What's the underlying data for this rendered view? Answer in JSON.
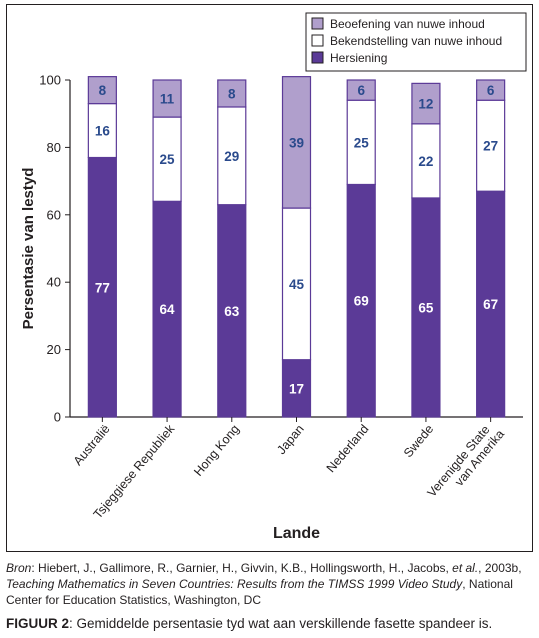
{
  "chart_data": {
    "type": "bar",
    "stacked": true,
    "categories": [
      "Australië",
      "Tsjeggiese Republiek",
      "Hong Kong",
      "Japan",
      "Nederland",
      "Swede",
      "Verenigde State van Amerika"
    ],
    "series": [
      {
        "name": "Hersiening",
        "values": [
          77,
          64,
          63,
          17,
          69,
          65,
          67
        ],
        "color": "#5b3a97"
      },
      {
        "name": "Bekendstelling van nuwe inhoud",
        "values": [
          16,
          25,
          29,
          45,
          25,
          22,
          27
        ],
        "color": "#ffffff"
      },
      {
        "name": "Beoefening van nuwe inhoud",
        "values": [
          8,
          11,
          8,
          39,
          6,
          12,
          6
        ],
        "color": "#b09fcc"
      }
    ],
    "legend_order": [
      "Beoefening van nuwe inhoud",
      "Bekendstelling van nuwe inhoud",
      "Hersiening"
    ],
    "legend_position": "top-right",
    "xlabel": "Lande",
    "ylabel": "Persentasie van lestyd",
    "ylim": [
      0,
      100
    ],
    "yticks": [
      "0",
      "20",
      "40",
      "60",
      "80",
      "100"
    ],
    "grid": false,
    "bar_label_color": "#2a4a8c",
    "bar_label_color_dark": "#ffffff"
  },
  "source": {
    "prefix": "Bron",
    "text": ": Hiebert, J., Gallimore, R., Garnier, H., Givvin, K.B., Hollingsworth, H., Jacobs, ",
    "etal": "et al.",
    "text2": ", 2003b, ",
    "title": "Teaching Mathematics in Seven Countries: Results from the TIMSS 1999 Video Study",
    "text3": ", National Center for Education Statistics, Washington, DC"
  },
  "caption": {
    "label": "FIGUUR 2",
    "text": ": Gemiddelde persentasie tyd wat aan verskillende fasette spandeer is."
  }
}
